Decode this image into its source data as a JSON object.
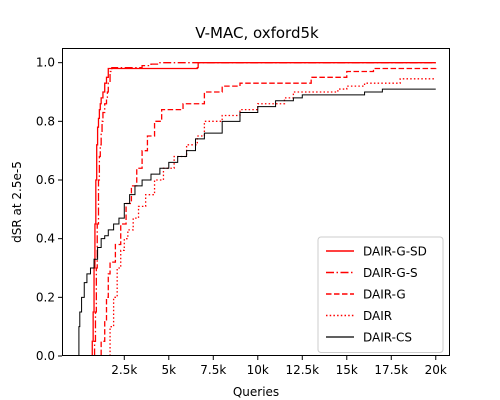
{
  "chart_data": {
    "type": "line",
    "title": "V-MAC, oxford5k",
    "xlabel": "Queries",
    "ylabel": "dSR at 2.5e-5",
    "xlim": [
      -1000,
      20800
    ],
    "ylim": [
      0.0,
      1.05
    ],
    "xticks": [
      {
        "value": 2500,
        "label": "2.5k"
      },
      {
        "value": 5000,
        "label": "5k"
      },
      {
        "value": 7500,
        "label": "7.5k"
      },
      {
        "value": 10000,
        "label": "10k"
      },
      {
        "value": 12500,
        "label": "12.5k"
      },
      {
        "value": 15000,
        "label": "15k"
      },
      {
        "value": 17500,
        "label": "17.5k"
      },
      {
        "value": 20000,
        "label": "20k"
      }
    ],
    "yticks": [
      {
        "value": 0.0,
        "label": "0.0"
      },
      {
        "value": 0.2,
        "label": "0.2"
      },
      {
        "value": 0.4,
        "label": "0.4"
      },
      {
        "value": 0.6,
        "label": "0.6"
      },
      {
        "value": 0.8,
        "label": "0.8"
      },
      {
        "value": 1.0,
        "label": "1.0"
      }
    ],
    "grid": false,
    "legend_position": "lower-right",
    "series": [
      {
        "name": "DAIR-G-SD",
        "color": "#ff0000",
        "dash": "solid",
        "width": 1.3,
        "points": [
          [
            660,
            0.0
          ],
          [
            700,
            0.05
          ],
          [
            750,
            0.15
          ],
          [
            800,
            0.3
          ],
          [
            850,
            0.45
          ],
          [
            900,
            0.6
          ],
          [
            950,
            0.72
          ],
          [
            1000,
            0.78
          ],
          [
            1050,
            0.81
          ],
          [
            1100,
            0.84
          ],
          [
            1150,
            0.86
          ],
          [
            1200,
            0.88
          ],
          [
            1300,
            0.9
          ],
          [
            1400,
            0.93
          ],
          [
            1500,
            0.95
          ],
          [
            1600,
            0.98
          ],
          [
            3000,
            0.98
          ],
          [
            4500,
            0.98
          ],
          [
            6600,
            0.983
          ],
          [
            6650,
            1.0
          ],
          [
            20000,
            1.0
          ]
        ]
      },
      {
        "name": "DAIR-G-S",
        "color": "#ff0000",
        "dash": "dashdot",
        "width": 1.3,
        "points": [
          [
            800,
            0.0
          ],
          [
            830,
            0.05
          ],
          [
            880,
            0.15
          ],
          [
            930,
            0.3
          ],
          [
            980,
            0.45
          ],
          [
            1050,
            0.6
          ],
          [
            1100,
            0.68
          ],
          [
            1150,
            0.72
          ],
          [
            1200,
            0.76
          ],
          [
            1250,
            0.8
          ],
          [
            1300,
            0.83
          ],
          [
            1400,
            0.86
          ],
          [
            1500,
            0.88
          ],
          [
            1550,
            0.9
          ],
          [
            1600,
            0.93
          ],
          [
            1700,
            0.97
          ],
          [
            1800,
            0.983
          ],
          [
            3000,
            0.983
          ],
          [
            3500,
            0.99
          ],
          [
            4000,
            0.995
          ],
          [
            4500,
            1.0
          ],
          [
            6500,
            1.0
          ],
          [
            20000,
            1.0
          ]
        ]
      },
      {
        "name": "DAIR-G",
        "color": "#ff0000",
        "dash": "dashed",
        "width": 1.3,
        "points": [
          [
            800,
            0.0
          ],
          [
            1200,
            0.05
          ],
          [
            1400,
            0.12
          ],
          [
            1500,
            0.2
          ],
          [
            1600,
            0.28
          ],
          [
            1700,
            0.32
          ],
          [
            2000,
            0.38
          ],
          [
            2300,
            0.45
          ],
          [
            2600,
            0.52
          ],
          [
            2900,
            0.58
          ],
          [
            3200,
            0.64
          ],
          [
            3500,
            0.7
          ],
          [
            3800,
            0.75
          ],
          [
            4200,
            0.8
          ],
          [
            4600,
            0.84
          ],
          [
            5600,
            0.84
          ],
          [
            5800,
            0.86
          ],
          [
            6600,
            0.86
          ],
          [
            7000,
            0.9
          ],
          [
            7600,
            0.9
          ],
          [
            8000,
            0.92
          ],
          [
            9000,
            0.93
          ],
          [
            11000,
            0.93
          ],
          [
            12500,
            0.93
          ],
          [
            13000,
            0.95
          ],
          [
            14500,
            0.95
          ],
          [
            15000,
            0.97
          ],
          [
            16500,
            0.98
          ],
          [
            20000,
            0.983
          ]
        ]
      },
      {
        "name": "DAIR",
        "color": "#ff0000",
        "dash": "dotted",
        "width": 1.3,
        "points": [
          [
            1500,
            0.0
          ],
          [
            1700,
            0.1
          ],
          [
            1900,
            0.2
          ],
          [
            2100,
            0.3
          ],
          [
            2300,
            0.36
          ],
          [
            2500,
            0.4
          ],
          [
            2700,
            0.43
          ],
          [
            3000,
            0.47
          ],
          [
            3300,
            0.51
          ],
          [
            3700,
            0.55
          ],
          [
            4200,
            0.6
          ],
          [
            4700,
            0.64
          ],
          [
            5300,
            0.68
          ],
          [
            6000,
            0.72
          ],
          [
            6600,
            0.75
          ],
          [
            7000,
            0.8
          ],
          [
            8000,
            0.82
          ],
          [
            9000,
            0.84
          ],
          [
            10000,
            0.86
          ],
          [
            11500,
            0.88
          ],
          [
            12000,
            0.9
          ],
          [
            14000,
            0.9
          ],
          [
            14500,
            0.91
          ],
          [
            15000,
            0.92
          ],
          [
            16000,
            0.93
          ],
          [
            17000,
            0.93
          ],
          [
            18000,
            0.945
          ],
          [
            20000,
            0.945
          ]
        ]
      },
      {
        "name": "DAIR-CS",
        "color": "#000000",
        "dash": "solid",
        "width": 1.0,
        "points": [
          [
            -100,
            0.0
          ],
          [
            -50,
            0.1
          ],
          [
            0,
            0.15
          ],
          [
            100,
            0.2
          ],
          [
            250,
            0.25
          ],
          [
            400,
            0.28
          ],
          [
            600,
            0.3
          ],
          [
            800,
            0.33
          ],
          [
            1000,
            0.37
          ],
          [
            1200,
            0.4
          ],
          [
            1400,
            0.41
          ],
          [
            1600,
            0.43
          ],
          [
            1900,
            0.45
          ],
          [
            2200,
            0.47
          ],
          [
            2500,
            0.52
          ],
          [
            2800,
            0.55
          ],
          [
            3100,
            0.58
          ],
          [
            3500,
            0.6
          ],
          [
            4000,
            0.62
          ],
          [
            4500,
            0.64
          ],
          [
            5000,
            0.66
          ],
          [
            5500,
            0.68
          ],
          [
            6000,
            0.7
          ],
          [
            6500,
            0.74
          ],
          [
            7000,
            0.76
          ],
          [
            8000,
            0.8
          ],
          [
            9000,
            0.83
          ],
          [
            10000,
            0.85
          ],
          [
            11000,
            0.87
          ],
          [
            12000,
            0.88
          ],
          [
            12500,
            0.89
          ],
          [
            14500,
            0.89
          ],
          [
            16000,
            0.9
          ],
          [
            17000,
            0.91
          ],
          [
            20000,
            0.91
          ]
        ]
      }
    ]
  }
}
